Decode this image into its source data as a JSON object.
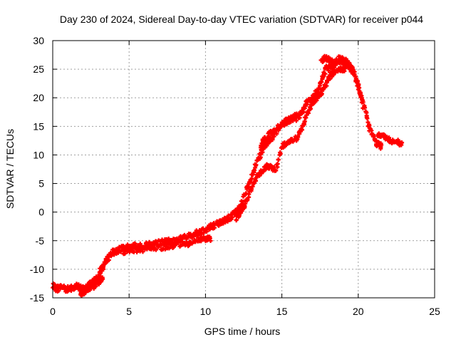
{
  "chart_data": {
    "type": "scatter",
    "title": "Day 230 of 2024, Sidereal Day-to-day VTEC variation (SDTVAR) for receiver p044",
    "xlabel": "GPS time / hours",
    "ylabel": "SDTVAR / TECUs",
    "xlim": [
      0,
      25
    ],
    "ylim": [
      -15,
      30
    ],
    "xticks": [
      0,
      5,
      10,
      15,
      20,
      25
    ],
    "yticks": [
      -15,
      -10,
      -5,
      0,
      5,
      10,
      15,
      20,
      25,
      30
    ],
    "grid": true,
    "marker_color": "#ff0000",
    "series": [
      {
        "name": "SDTVAR",
        "trace_main": [
          [
            0.0,
            -13.0
          ],
          [
            0.3,
            -13.4
          ],
          [
            0.6,
            -13.0
          ],
          [
            0.9,
            -13.5
          ],
          [
            1.2,
            -13.2
          ],
          [
            1.5,
            -13.0
          ],
          [
            1.8,
            -13.3
          ],
          [
            2.1,
            -13.5
          ],
          [
            2.4,
            -12.8
          ],
          [
            2.7,
            -12.0
          ],
          [
            3.0,
            -11.0
          ],
          [
            3.2,
            -10.0
          ],
          [
            3.4,
            -9.0
          ],
          [
            3.6,
            -8.0
          ],
          [
            3.8,
            -7.3
          ],
          [
            4.0,
            -7.0
          ],
          [
            4.3,
            -6.6
          ],
          [
            4.6,
            -6.4
          ],
          [
            5.0,
            -6.2
          ],
          [
            5.3,
            -6.0
          ],
          [
            5.6,
            -6.0
          ],
          [
            6.0,
            -5.8
          ],
          [
            6.3,
            -5.8
          ],
          [
            6.6,
            -5.6
          ],
          [
            7.0,
            -5.4
          ],
          [
            7.3,
            -5.3
          ],
          [
            7.6,
            -5.2
          ],
          [
            8.0,
            -5.0
          ],
          [
            8.3,
            -4.8
          ],
          [
            8.6,
            -4.5
          ],
          [
            9.0,
            -4.2
          ],
          [
            9.3,
            -3.8
          ],
          [
            9.6,
            -3.5
          ],
          [
            10.0,
            -3.0
          ],
          [
            10.3,
            -2.6
          ],
          [
            10.6,
            -2.2
          ],
          [
            11.0,
            -1.8
          ],
          [
            11.3,
            -1.4
          ],
          [
            11.6,
            -1.0
          ],
          [
            12.0,
            0.0
          ],
          [
            12.3,
            1.0
          ],
          [
            12.6,
            3.0
          ],
          [
            12.9,
            5.0
          ],
          [
            13.2,
            7.5
          ],
          [
            13.5,
            9.5
          ],
          [
            13.8,
            11.0
          ],
          [
            14.0,
            12.0
          ],
          [
            14.3,
            13.0
          ],
          [
            14.6,
            14.0
          ],
          [
            15.0,
            15.0
          ],
          [
            15.3,
            15.8
          ],
          [
            15.6,
            16.3
          ],
          [
            16.0,
            16.5
          ],
          [
            16.3,
            17.5
          ],
          [
            16.6,
            19.0
          ],
          [
            17.0,
            20.0
          ],
          [
            17.3,
            21.0
          ],
          [
            17.6,
            23.0
          ],
          [
            17.9,
            25.0
          ],
          [
            18.2,
            25.5
          ],
          [
            18.5,
            26.0
          ],
          [
            18.8,
            26.5
          ],
          [
            19.1,
            26.0
          ],
          [
            19.4,
            25.5
          ],
          [
            19.7,
            24.5
          ],
          [
            20.0,
            22.0
          ],
          [
            20.3,
            19.0
          ],
          [
            20.6,
            16.0
          ],
          [
            20.9,
            13.5
          ],
          [
            21.2,
            12.0
          ],
          [
            21.5,
            11.5
          ]
        ],
        "trace_lower": [
          [
            1.8,
            -14.2
          ],
          [
            2.1,
            -14.0
          ],
          [
            2.4,
            -13.6
          ],
          [
            2.7,
            -13.0
          ],
          [
            3.0,
            -12.3
          ],
          [
            3.2,
            -11.6
          ],
          [
            4.6,
            -7.0
          ],
          [
            5.0,
            -6.8
          ],
          [
            5.6,
            -6.6
          ],
          [
            6.3,
            -6.4
          ],
          [
            7.0,
            -6.2
          ],
          [
            7.6,
            -6.0
          ],
          [
            8.0,
            -5.8
          ],
          [
            8.6,
            -5.5
          ],
          [
            9.0,
            -5.5
          ],
          [
            9.6,
            -4.8
          ],
          [
            10.0,
            -4.6
          ],
          [
            10.3,
            -4.6
          ],
          [
            12.0,
            -1.0
          ],
          [
            12.3,
            0.0
          ],
          [
            12.6,
            1.5
          ],
          [
            13.0,
            4.0
          ],
          [
            13.4,
            6.5
          ],
          [
            13.8,
            7.5
          ],
          [
            14.0,
            8.0
          ],
          [
            14.3,
            7.8
          ],
          [
            14.6,
            7.5
          ],
          [
            15.0,
            11.5
          ],
          [
            15.3,
            12.0
          ],
          [
            15.6,
            12.5
          ],
          [
            16.0,
            13.0
          ],
          [
            16.3,
            14.5
          ],
          [
            16.6,
            17.0
          ],
          [
            17.0,
            19.0
          ],
          [
            17.3,
            20.0
          ],
          [
            17.6,
            21.0
          ],
          [
            17.9,
            22.5
          ],
          [
            18.2,
            24.0
          ],
          [
            18.5,
            24.5
          ],
          [
            18.8,
            25.0
          ],
          [
            19.1,
            25.0
          ]
        ],
        "trace_upper": [
          [
            13.6,
            11.0
          ],
          [
            13.8,
            12.5
          ],
          [
            14.0,
            13.0
          ],
          [
            14.3,
            14.0
          ],
          [
            14.6,
            14.5
          ],
          [
            15.3,
            16.0
          ],
          [
            15.6,
            16.5
          ],
          [
            16.0,
            16.8
          ],
          [
            17.6,
            26.5
          ],
          [
            17.9,
            27.0
          ],
          [
            18.2,
            26.5
          ],
          [
            18.5,
            26.0
          ],
          [
            18.8,
            27.0
          ],
          [
            19.2,
            26.5
          ],
          [
            19.5,
            25.5
          ],
          [
            19.8,
            24.0
          ],
          [
            20.2,
            20.0
          ]
        ],
        "trace_tail": [
          [
            21.3,
            13.5
          ],
          [
            21.6,
            13.2
          ],
          [
            21.9,
            13.0
          ],
          [
            22.2,
            12.3
          ],
          [
            22.5,
            12.5
          ],
          [
            22.8,
            11.8
          ]
        ]
      }
    ]
  }
}
